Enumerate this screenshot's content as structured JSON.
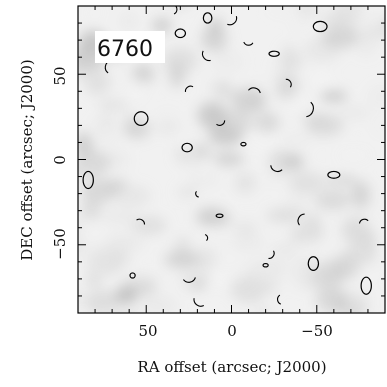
{
  "chart_data": {
    "type": "heatmap",
    "label": "6760",
    "xlabel": "RA offset (arcsec; J2000)",
    "ylabel": "DEC offset (arcsec; J2000)",
    "xlim": [
      90,
      -90
    ],
    "ylim": [
      -90,
      90
    ],
    "x_axis_reversed": true,
    "x_ticks": [
      50,
      0,
      -50
    ],
    "x_tick_labels": [
      "50",
      "0",
      "−50"
    ],
    "y_ticks": [
      50,
      0,
      -50
    ],
    "y_tick_labels": [
      "50",
      "0",
      "−50"
    ],
    "colormap": "grayscale",
    "contour_color": "#000000",
    "contours": [
      {
        "shape": "closed",
        "ra": -52,
        "dec": 78,
        "rx": 4,
        "ry": 3
      },
      {
        "shape": "closed",
        "ra": 30,
        "dec": 74,
        "rx": 3,
        "ry": 2.5
      },
      {
        "shape": "closed",
        "ra": 14,
        "dec": 83,
        "rx": 2.5,
        "ry": 3
      },
      {
        "shape": "closed",
        "ra": 53,
        "dec": 24,
        "rx": 4,
        "ry": 4
      },
      {
        "shape": "closed",
        "ra": 26,
        "dec": 7,
        "rx": 3,
        "ry": 2.5
      },
      {
        "shape": "closed",
        "ra": -60,
        "dec": -9,
        "rx": 3.5,
        "ry": 2
      },
      {
        "shape": "closed",
        "ra": -48,
        "dec": -61,
        "rx": 3,
        "ry": 4
      },
      {
        "shape": "closed",
        "ra": -79,
        "dec": -74,
        "rx": 3,
        "ry": 5
      },
      {
        "shape": "closed",
        "ra": 84,
        "dec": -12,
        "rx": 3,
        "ry": 5
      },
      {
        "shape": "closed",
        "ra": 58,
        "dec": -68,
        "rx": 1.5,
        "ry": 1.5
      },
      {
        "shape": "closed",
        "ra": -7,
        "dec": 9,
        "rx": 1.5,
        "ry": 1
      },
      {
        "shape": "closed",
        "ra": -25,
        "dec": 62,
        "rx": 3,
        "ry": 1.5
      },
      {
        "shape": "closed",
        "ra": -20,
        "dec": -62,
        "rx": 1.5,
        "ry": 1
      },
      {
        "shape": "closed",
        "ra": 7,
        "dec": -33,
        "rx": 2,
        "ry": 1
      },
      {
        "shape": "arc",
        "ra": 35,
        "dec": 88,
        "r": 3
      },
      {
        "shape": "arc",
        "ra": 1,
        "dec": 83,
        "r": 4
      },
      {
        "shape": "arc",
        "ra": -10,
        "dec": 70,
        "r": 3
      },
      {
        "shape": "arc",
        "ra": 13,
        "dec": 62,
        "r": 4
      },
      {
        "shape": "arc",
        "ra": 70,
        "dec": 54,
        "r": 4
      },
      {
        "shape": "arc",
        "ra": 24,
        "dec": 40,
        "r": 3
      },
      {
        "shape": "arc",
        "ra": -13,
        "dec": 38,
        "r": 4
      },
      {
        "shape": "arc",
        "ra": -32,
        "dec": 44,
        "r": 3
      },
      {
        "shape": "arc",
        "ra": -43,
        "dec": 30,
        "r": 5
      },
      {
        "shape": "arc",
        "ra": 7,
        "dec": 23,
        "r": 3
      },
      {
        "shape": "arc",
        "ra": -27,
        "dec": -3,
        "r": 4
      },
      {
        "shape": "arc",
        "ra": 19,
        "dec": -20,
        "r": 2
      },
      {
        "shape": "arc",
        "ra": -43,
        "dec": -36,
        "r": 4
      },
      {
        "shape": "arc",
        "ra": -78,
        "dec": -38,
        "r": 3
      },
      {
        "shape": "arc",
        "ra": 54,
        "dec": -38,
        "r": 3
      },
      {
        "shape": "arc",
        "ra": 16,
        "dec": -46,
        "r": 2
      },
      {
        "shape": "arc",
        "ra": -22,
        "dec": -55,
        "r": 3
      },
      {
        "shape": "arc",
        "ra": 25,
        "dec": -68,
        "r": 4
      },
      {
        "shape": "arc",
        "ra": 18,
        "dec": -82,
        "r": 4
      },
      {
        "shape": "arc",
        "ra": -30,
        "dec": -82,
        "r": 3
      }
    ]
  }
}
